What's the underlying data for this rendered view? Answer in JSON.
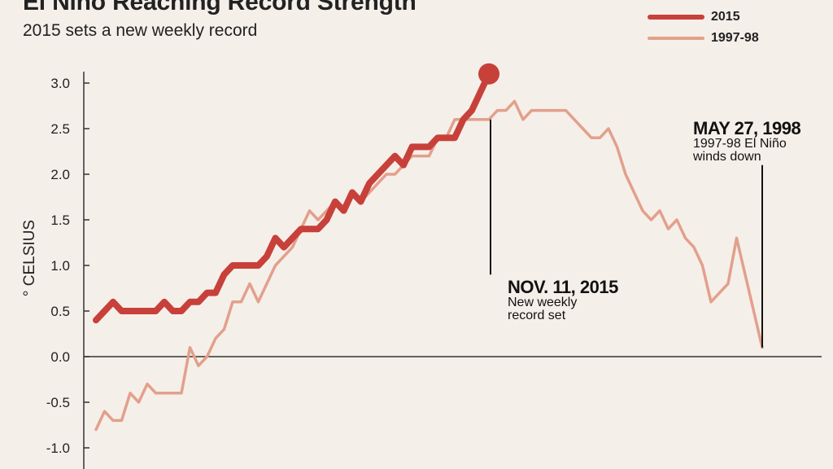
{
  "title": "El Nino Reaching Record Strength",
  "subtitle": "2015 sets a new weekly record",
  "colors": {
    "s2015": "#c8403a",
    "s1997": "#e2a08c",
    "background": "#f5efe9",
    "axis": "#333333"
  },
  "annotations": [
    {
      "head": "NOV. 11, 2015",
      "body": [
        "New weekly",
        "record set"
      ]
    },
    {
      "head": "MAY 27, 1998",
      "body": [
        "1997-98 El Niño",
        "winds down"
      ]
    }
  ],
  "chart_data": {
    "type": "line",
    "title": "El Nino Reaching Record Strength",
    "subtitle": "2015 sets a new weekly record",
    "ylabel": "° CELSIUS",
    "xlabel": "",
    "ylim": [
      -1.0,
      3.0
    ],
    "yticks": [
      "3.0",
      "2.5",
      "2.0",
      "1.5",
      "1.0",
      "0.5",
      "0.0",
      "-0.5",
      "-1.0"
    ],
    "legend_position": "top-right",
    "grid": false,
    "series": [
      {
        "name": "2015",
        "color": "#c8403a",
        "values": [
          0.4,
          0.5,
          0.6,
          0.5,
          0.5,
          0.5,
          0.5,
          0.5,
          0.6,
          0.5,
          0.5,
          0.6,
          0.6,
          0.7,
          0.7,
          0.9,
          1.0,
          1.0,
          1.0,
          1.0,
          1.1,
          1.3,
          1.2,
          1.3,
          1.4,
          1.4,
          1.4,
          1.5,
          1.7,
          1.6,
          1.8,
          1.7,
          1.9,
          2.0,
          2.1,
          2.2,
          2.1,
          2.3,
          2.3,
          2.3,
          2.4,
          2.4,
          2.4,
          2.6,
          2.7,
          2.9,
          3.1
        ]
      },
      {
        "name": "1997-98",
        "color": "#e2a08c",
        "values": [
          -0.8,
          -0.6,
          -0.7,
          -0.7,
          -0.4,
          -0.5,
          -0.3,
          -0.4,
          -0.4,
          -0.4,
          -0.4,
          0.1,
          -0.1,
          0.0,
          0.2,
          0.3,
          0.6,
          0.6,
          0.8,
          0.6,
          0.8,
          1.0,
          1.1,
          1.2,
          1.4,
          1.6,
          1.5,
          1.6,
          1.7,
          1.6,
          1.8,
          1.7,
          1.8,
          1.9,
          2.0,
          2.0,
          2.1,
          2.2,
          2.2,
          2.2,
          2.4,
          2.4,
          2.6,
          2.6,
          2.6,
          2.6,
          2.6,
          2.7,
          2.7,
          2.8,
          2.6,
          2.7,
          2.7,
          2.7,
          2.7,
          2.7,
          2.6,
          2.5,
          2.4,
          2.4,
          2.5,
          2.3,
          2.0,
          1.8,
          1.6,
          1.5,
          1.6,
          1.4,
          1.5,
          1.3,
          1.2,
          1.0,
          0.6,
          0.7,
          0.8,
          1.3,
          0.9,
          0.5,
          0.1
        ]
      }
    ]
  }
}
